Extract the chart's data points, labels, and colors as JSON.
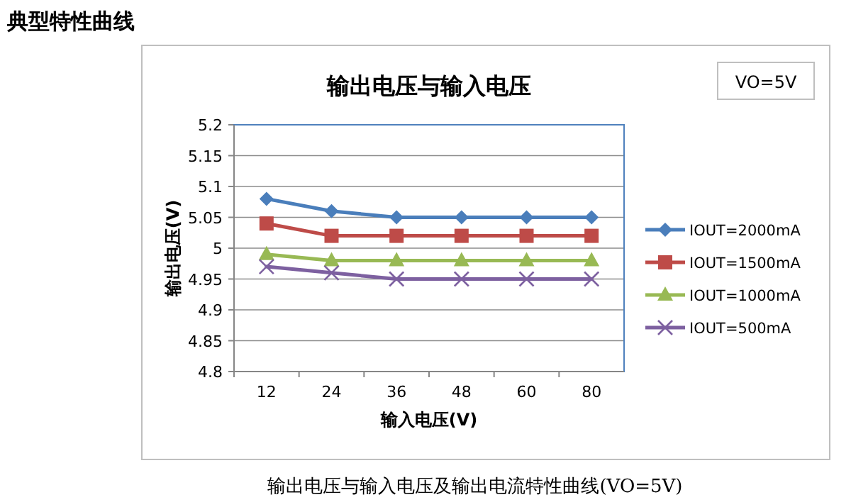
{
  "chart_data": {
    "type": "line",
    "title": "输出电压与输入电压",
    "xlabel": "输入电压(V)",
    "ylabel": "输出电压(V)",
    "annotations": [
      "典型特性曲线",
      "VO=5V",
      "输出电压与输入电压及输出电流特性曲线(VO=5V)"
    ],
    "categories": [
      "12",
      "24",
      "36",
      "48",
      "60",
      "80"
    ],
    "series": [
      {
        "name": "IOUT=2000mA",
        "color": "#4a7ebb",
        "marker": "diamond",
        "values": [
          5.08,
          5.06,
          5.05,
          5.05,
          5.05,
          5.05
        ]
      },
      {
        "name": "IOUT=1500mA",
        "color": "#be4b48",
        "marker": "square",
        "values": [
          5.04,
          5.02,
          5.02,
          5.02,
          5.02,
          5.02
        ]
      },
      {
        "name": "IOUT=1000mA",
        "color": "#98b954",
        "marker": "triangle",
        "values": [
          4.99,
          4.98,
          4.98,
          4.98,
          4.98,
          4.98
        ]
      },
      {
        "name": "IOUT=500mA",
        "color": "#7d60a0",
        "marker": "cross",
        "values": [
          4.97,
          4.96,
          4.95,
          4.95,
          4.95,
          4.95
        ]
      }
    ],
    "ylim": [
      4.8,
      5.2
    ],
    "yticks": [
      4.8,
      4.85,
      4.9,
      4.95,
      5,
      5.05,
      5.1,
      5.15,
      5.2
    ],
    "grid": "y",
    "legend": "right",
    "line_style": "solid"
  }
}
